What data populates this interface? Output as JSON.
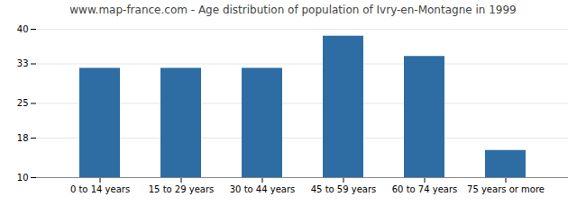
{
  "chart_data": {
    "type": "bar",
    "title": "www.map-france.com - Age distribution of population of Ivry-en-Montagne in 1999",
    "categories": [
      "0 to 14 years",
      "15 to 29 years",
      "30 to 44 years",
      "45 to 59 years",
      "60 to 74 years",
      "75 years or more"
    ],
    "values": [
      32.1,
      32.1,
      32.1,
      38.6,
      34.5,
      15.5
    ],
    "color": "#2e6da4",
    "ylim": [
      10,
      40
    ],
    "yticks": [
      10,
      18,
      25,
      33,
      40
    ],
    "grid": true
  }
}
